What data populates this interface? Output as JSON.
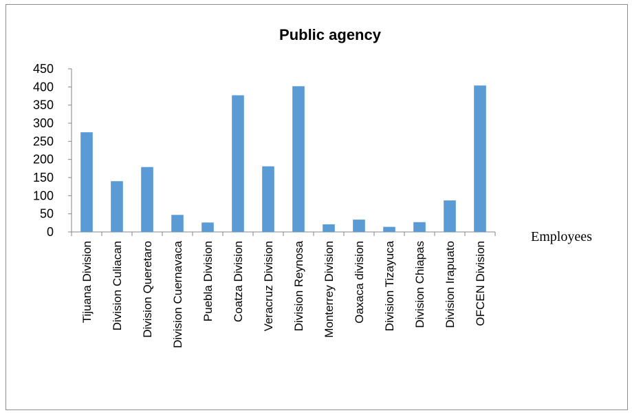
{
  "chart_data": {
    "type": "bar",
    "title": "Public agency",
    "categories": [
      "Tijuana Division",
      "Division Culiacan",
      "Division Queretaro",
      "Division Cuernavaca",
      "Puebla Division",
      "Coatza Division",
      "Veracruz Division",
      "Division Reynosa",
      "Monterrey Division",
      "Oaxaca division",
      "Division Tizayuca",
      "Division Chiapas",
      "Division Irapuato",
      "OFCEN Division"
    ],
    "series": [
      {
        "name": "Employees",
        "color": "#5b9bd5",
        "values": [
          275,
          140,
          179,
          47,
          26,
          377,
          181,
          402,
          21,
          34,
          14,
          27,
          87,
          404
        ]
      }
    ],
    "xlabel": "",
    "ylabel": "",
    "ylim": [
      0,
      450
    ],
    "yticks": [
      0,
      50,
      100,
      150,
      200,
      250,
      300,
      350,
      400,
      450
    ],
    "grid": false,
    "legend": "right"
  }
}
